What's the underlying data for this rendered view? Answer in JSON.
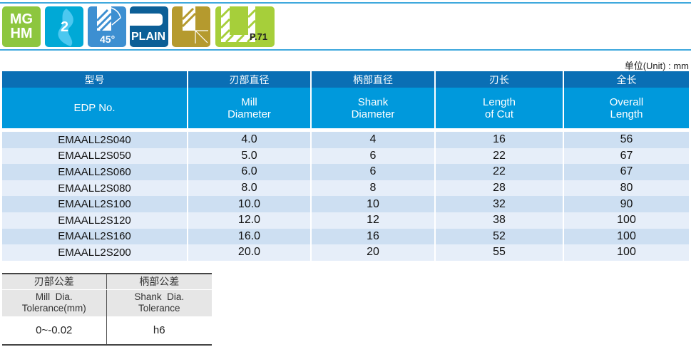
{
  "icons": [
    {
      "name": "material-mg-hm",
      "lines": [
        "MG",
        "HM"
      ],
      "color": "#8dc63f"
    },
    {
      "name": "flutes-2",
      "text": "2",
      "color": "#00a9d6"
    },
    {
      "name": "chamfer-45",
      "text": "45°",
      "color": "#3d8fd1"
    },
    {
      "name": "shank-plain",
      "text": "PLAIN",
      "color": "#0c5f97"
    },
    {
      "name": "cutting-direction",
      "color": "#b59a2e"
    },
    {
      "name": "profile-page",
      "text": "P.71",
      "color": "#a6cf3a"
    }
  ],
  "unit_label": "单位(Unit) : mm",
  "main_table": {
    "headers_cn": [
      "型号",
      "刃部直径",
      "柄部直径",
      "刃长",
      "全长"
    ],
    "headers_en": [
      [
        "EDP No."
      ],
      [
        "Mill",
        "Diameter"
      ],
      [
        "Shank",
        "Diameter"
      ],
      [
        "Length",
        "of Cut"
      ],
      [
        "Overall",
        "Length"
      ]
    ],
    "rows": [
      [
        "EMAALL2S040",
        "4.0",
        "4",
        "16",
        "56"
      ],
      [
        "EMAALL2S050",
        "5.0",
        "6",
        "22",
        "67"
      ],
      [
        "EMAALL2S060",
        "6.0",
        "6",
        "22",
        "67"
      ],
      [
        "EMAALL2S080",
        "8.0",
        "8",
        "28",
        "80"
      ],
      [
        "EMAALL2S100",
        "10.0",
        "10",
        "32",
        "90"
      ],
      [
        "EMAALL2S120",
        "12.0",
        "12",
        "38",
        "100"
      ],
      [
        "EMAALL2S160",
        "16.0",
        "16",
        "52",
        "100"
      ],
      [
        "EMAALL2S200",
        "20.0",
        "20",
        "55",
        "100"
      ]
    ]
  },
  "tolerance_table": {
    "headers_cn": [
      "刃部公差",
      "柄部公差"
    ],
    "headers_en": [
      [
        "Mill  Dia.",
        "Tolerance(mm)"
      ],
      [
        "Shank  Dia.",
        "Tolerance"
      ]
    ],
    "values": [
      "0~-0.02",
      "h6"
    ]
  }
}
